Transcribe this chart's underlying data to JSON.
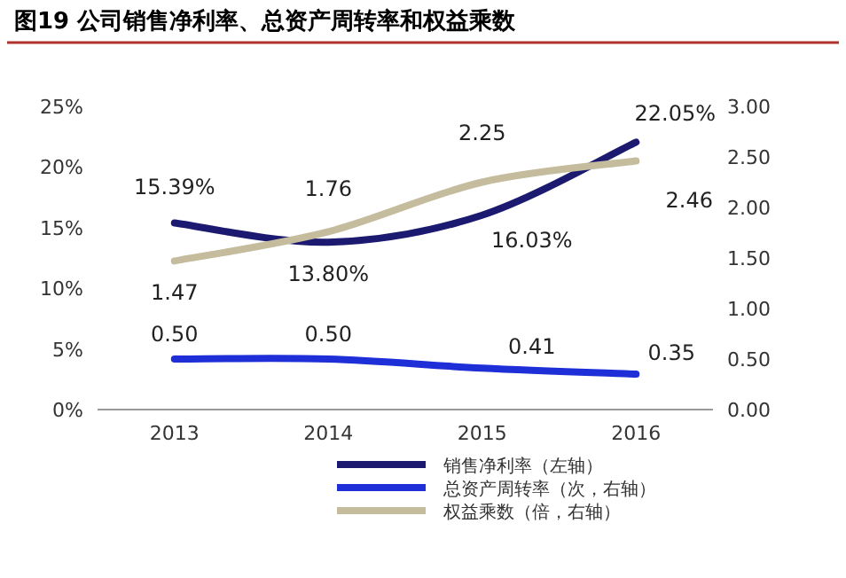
{
  "chart_data": {
    "type": "line",
    "title": "图19 公司销售净利率、总资产周转率和权益乘数",
    "categories": [
      "2013",
      "2014",
      "2015",
      "2016"
    ],
    "series": [
      {
        "name": "销售净利率（左轴）",
        "color": "#1c1a70",
        "values": [
          15.39,
          13.8,
          16.03,
          22.05
        ],
        "value_labels": [
          "15.39%",
          "13.80%",
          "16.03%",
          "22.05%"
        ]
      },
      {
        "name": "总资产周转率（次，右轴）",
        "color": "#1f2fd8",
        "axis": "y2",
        "values": [
          0.5,
          0.5,
          0.41,
          0.35
        ],
        "value_labels": [
          "0.50",
          "0.50",
          "0.41",
          "0.35"
        ]
      },
      {
        "name": "权益乘数（倍，右轴）",
        "color": "#c4bc9c",
        "axis": "y2",
        "values": [
          1.47,
          1.76,
          2.25,
          2.46
        ],
        "value_labels": [
          "1.47",
          "1.76",
          "2.25",
          "2.46"
        ]
      }
    ],
    "ylim": [
      0,
      25
    ],
    "yticks": [
      {
        "value": 0,
        "label": "0%"
      },
      {
        "value": 5,
        "label": "5%"
      },
      {
        "value": 10,
        "label": "10%"
      },
      {
        "value": 15,
        "label": "15%"
      },
      {
        "value": 20,
        "label": "20%"
      },
      {
        "value": 25,
        "label": "25%"
      }
    ],
    "y2lim": [
      0,
      3
    ],
    "y2ticks": [
      {
        "value": 0,
        "label": "0.00"
      },
      {
        "value": 0.5,
        "label": "0.50"
      },
      {
        "value": 1,
        "label": "1.00"
      },
      {
        "value": 1.5,
        "label": "1.50"
      },
      {
        "value": 2,
        "label": "2.00"
      },
      {
        "value": 2.5,
        "label": "2.50"
      },
      {
        "value": 3,
        "label": "3.00"
      }
    ],
    "legend": "bottom"
  }
}
